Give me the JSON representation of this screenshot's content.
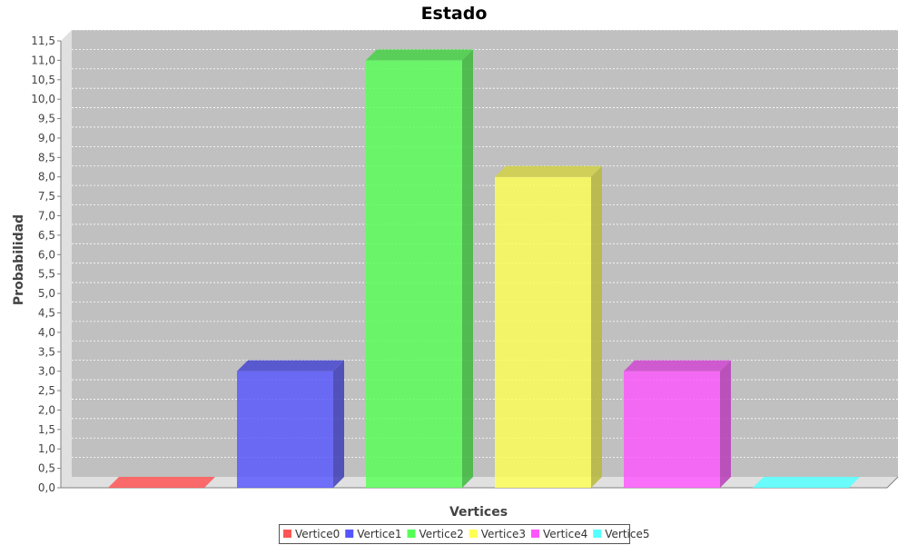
{
  "chart_data": {
    "type": "bar",
    "title": "Estado",
    "xlabel": "Vertices",
    "ylabel": "Probabilidad",
    "ylim": [
      0,
      11.5
    ],
    "ytick_step": 0.5,
    "ytick_labels": [
      "0,0",
      "0,5",
      "1,0",
      "1,5",
      "2,0",
      "2,5",
      "3,0",
      "3,5",
      "4,0",
      "4,5",
      "5,0",
      "5,5",
      "6,0",
      "6,5",
      "7,0",
      "7,5",
      "8,0",
      "8,5",
      "9,0",
      "9,5",
      "10,0",
      "10,5",
      "11,0",
      "11,5"
    ],
    "grid": true,
    "legend_position": "bottom",
    "series": [
      {
        "name": "Vertice0",
        "value": 0,
        "color": "#ff5555"
      },
      {
        "name": "Vertice1",
        "value": 3,
        "color": "#5555ff"
      },
      {
        "name": "Vertice2",
        "value": 11,
        "color": "#55ff55"
      },
      {
        "name": "Vertice3",
        "value": 8,
        "color": "#ffff55"
      },
      {
        "name": "Vertice4",
        "value": 3,
        "color": "#ff55ff"
      },
      {
        "name": "Vertice5",
        "value": 0,
        "color": "#55ffff"
      }
    ]
  }
}
